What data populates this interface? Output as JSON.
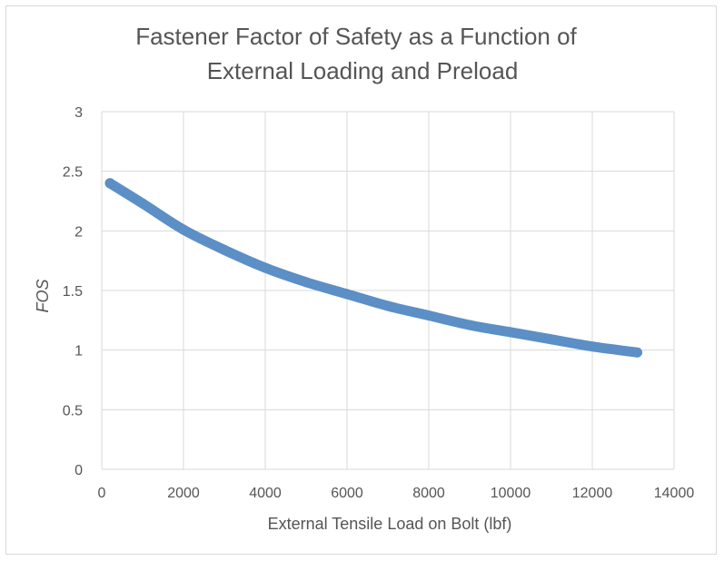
{
  "chart_data": {
    "type": "scatter",
    "title_lines": [
      "Fastener Factor of Safety as a Function of",
      "External Loading and Preload"
    ],
    "xlabel": "External Tensile Load on Bolt (lbf)",
    "ylabel": "FOS",
    "xlim": [
      0,
      14000
    ],
    "ylim": [
      0,
      3
    ],
    "xticks": [
      0,
      2000,
      4000,
      6000,
      8000,
      10000,
      12000,
      14000
    ],
    "yticks": [
      0,
      0.5,
      1,
      1.5,
      2,
      2.5,
      3
    ],
    "xtick_labels": [
      "0",
      "2000",
      "4000",
      "6000",
      "8000",
      "10000",
      "12000",
      "14000"
    ],
    "ytick_labels": [
      "0",
      "0.5",
      "1",
      "1.5",
      "2",
      "2.5",
      "3"
    ],
    "grid": true,
    "legend": "none",
    "series_color": "#5b8fc5",
    "x": [
      200,
      1000,
      2000,
      3000,
      4000,
      5000,
      6000,
      7000,
      8000,
      9000,
      10000,
      11000,
      12000,
      13100
    ],
    "y": [
      2.4,
      2.23,
      2.01,
      1.84,
      1.69,
      1.57,
      1.47,
      1.37,
      1.29,
      1.21,
      1.15,
      1.09,
      1.03,
      0.98
    ]
  }
}
